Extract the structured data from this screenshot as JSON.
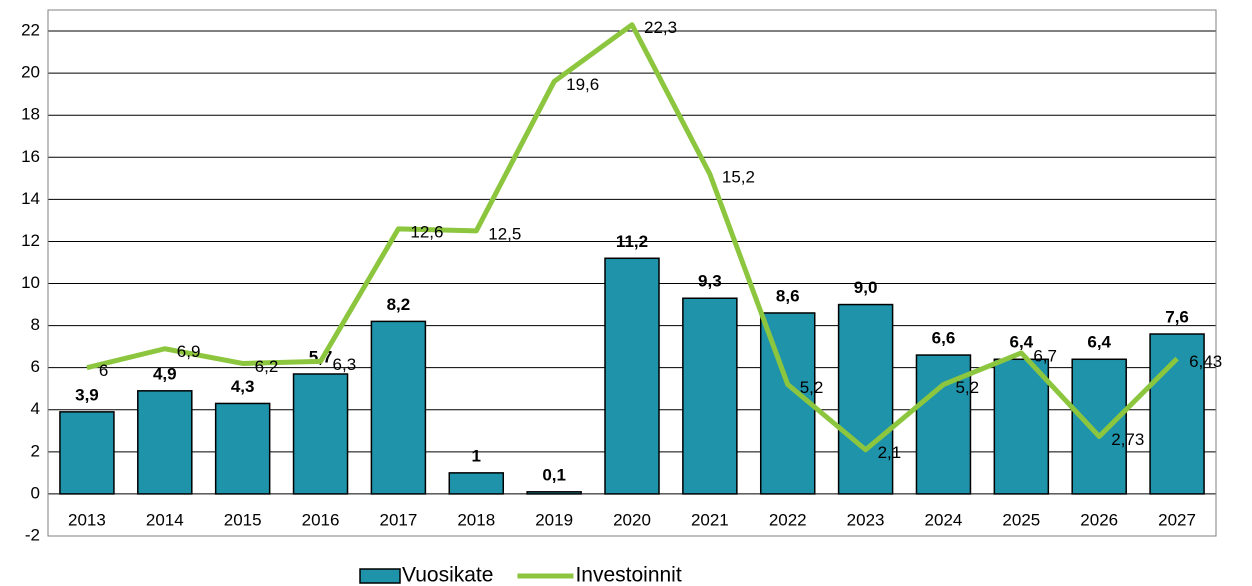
{
  "chart_data": {
    "type": "bar-line",
    "categories": [
      "2013",
      "2014",
      "2015",
      "2016",
      "2017",
      "2018",
      "2019",
      "2020",
      "2021",
      "2022",
      "2023",
      "2024",
      "2025",
      "2026",
      "2027"
    ],
    "series": [
      {
        "name": "Vuosikate",
        "type": "bar",
        "color": "#1f93aa",
        "values": [
          3.9,
          4.9,
          4.3,
          5.7,
          8.2,
          1,
          0.1,
          11.2,
          9.3,
          8.6,
          9.0,
          6.6,
          6.4,
          6.4,
          7.6
        ],
        "value_labels": [
          "3,9",
          "4,9",
          "4,3",
          "5,7",
          "8,2",
          "1",
          "0,1",
          "11,2",
          "9,3",
          "8,6",
          "9,0",
          "6,6",
          "6,4",
          "6,4",
          "7,6"
        ]
      },
      {
        "name": "Investoinnit",
        "type": "line",
        "color": "#8cc63e",
        "values": [
          6,
          6.9,
          6.2,
          6.3,
          12.6,
          12.5,
          19.6,
          22.3,
          15.2,
          5.2,
          2.1,
          5.2,
          6.7,
          2.73,
          6.43
        ],
        "value_labels": [
          "6",
          "6,9",
          "6,2",
          "6,3",
          "12,6",
          "12,5",
          "19,6",
          "22,3",
          "15,2",
          "5,2",
          "2,1",
          "5,2",
          "6,7",
          "2,73",
          "6,43"
        ]
      }
    ],
    "ylim": [
      -2,
      23
    ],
    "yticks": [
      -2,
      0,
      2,
      4,
      6,
      8,
      10,
      12,
      14,
      16,
      18,
      20,
      22
    ],
    "grid": true,
    "legend": "bottom"
  }
}
